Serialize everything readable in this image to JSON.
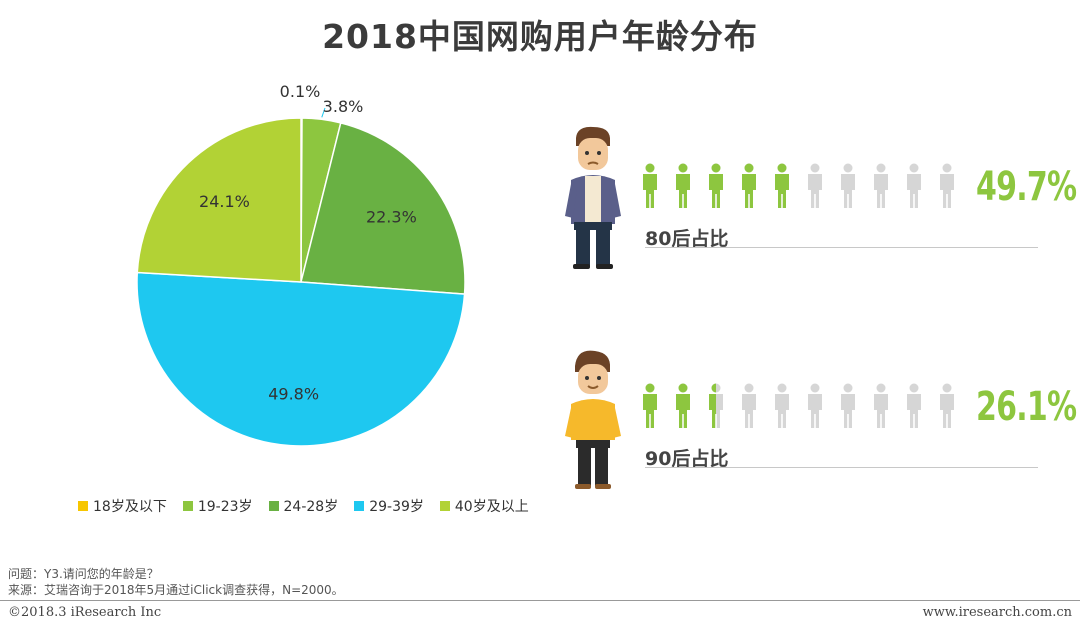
{
  "title": "2018中国网购用户年龄分布",
  "chart_data": {
    "type": "pie",
    "title": "2018中国网购用户年龄分布",
    "categories": [
      "18岁及以下",
      "19-23岁",
      "24-28岁",
      "29-39岁",
      "40岁及以上"
    ],
    "values": [
      0.1,
      3.8,
      22.3,
      49.8,
      24.1
    ],
    "value_labels": [
      "0.1%",
      "3.8%",
      "22.3%",
      "49.8%",
      "24.1%"
    ],
    "colors": [
      "#f7c600",
      "#8dc63f",
      "#69b143",
      "#1ec8f0",
      "#b2d235"
    ],
    "legend_position": "bottom"
  },
  "ratios": [
    {
      "label": "80后占比",
      "percent_text": "49.7%",
      "value": 49.7,
      "icons_total": 10,
      "filled_icons": 5
    },
    {
      "label": "90后占比",
      "percent_text": "26.1%",
      "value": 26.1,
      "icons_total": 10,
      "filled_icons": 2.5
    }
  ],
  "icon_colors": {
    "filled": "#8dc63f",
    "empty": "#d6d6d6"
  },
  "notes": {
    "question": "问题：Y3.请问您的年龄是？",
    "source": "来源：艾瑞咨询于2018年5月通过iClick调查获得，N=2000。"
  },
  "footer": {
    "copyright": "©2018.3 iResearch Inc",
    "website": "www.iresearch.com.cn"
  }
}
